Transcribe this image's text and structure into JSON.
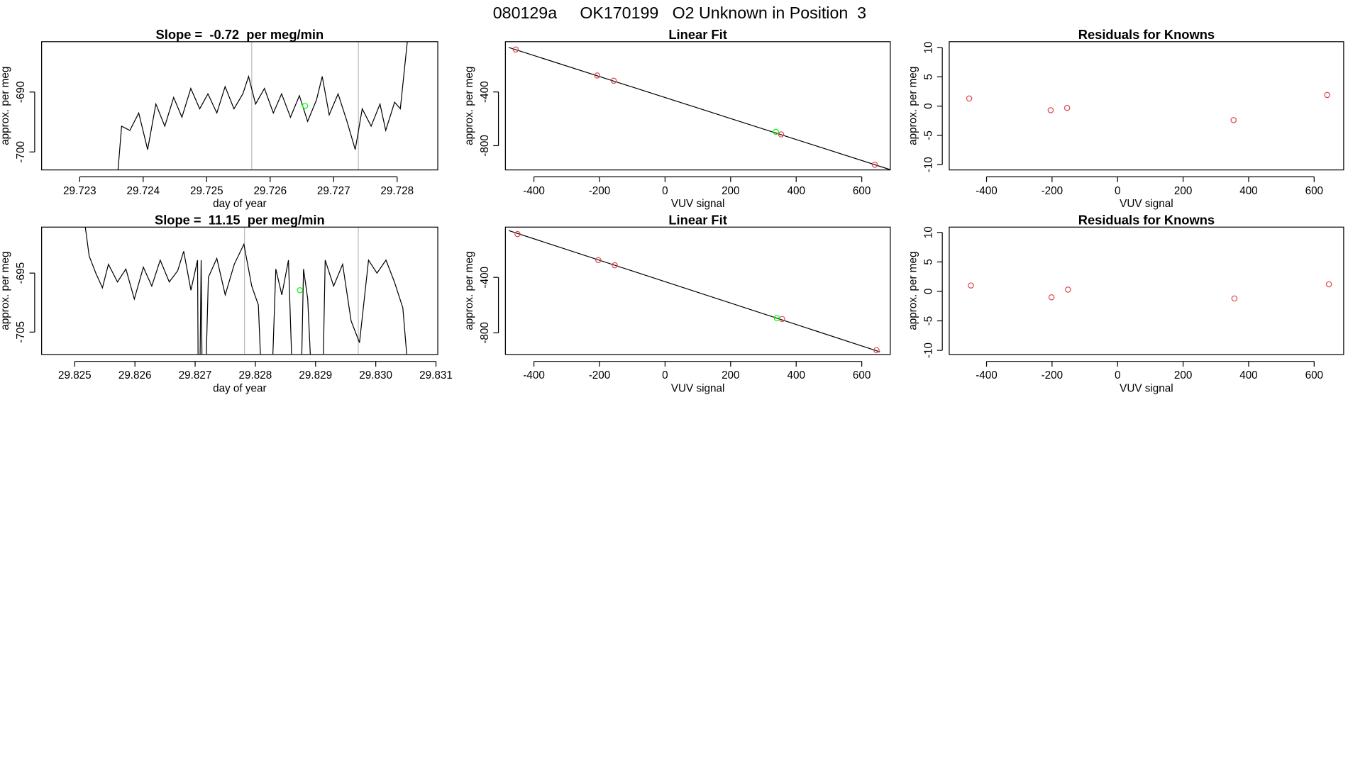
{
  "title": "080129a     OK170199   O2 Unknown in Position  3",
  "chart_data": [
    {
      "type": "line",
      "title": "Slope =  -0.72  per meg/min",
      "xlabel": "day of year",
      "ylabel": "approx. per meg",
      "color": "#000000",
      "x": [
        29.7236,
        29.72366,
        29.72379,
        29.72393,
        29.72407,
        29.7242,
        29.72434,
        29.72448,
        29.72461,
        29.72475,
        29.72489,
        29.72502,
        29.72516,
        29.72529,
        29.72543,
        29.72557,
        29.72566,
        29.72577,
        29.72591,
        29.72605,
        29.72618,
        29.72632,
        29.72646,
        29.72659,
        29.72673,
        29.72682,
        29.72693,
        29.72707,
        29.72721,
        29.72734,
        29.72745,
        29.72759,
        29.72773,
        29.72782,
        29.72796,
        29.72805,
        29.72816,
        29.72819
      ],
      "values": [
        -703.5,
        -695.7,
        -696.4,
        -693.5,
        -699.6,
        -692.0,
        -695.7,
        -690.9,
        -694.2,
        -689.4,
        -692.8,
        -690.3,
        -693.5,
        -689.1,
        -692.8,
        -690.3,
        -687.4,
        -692.0,
        -689.4,
        -693.5,
        -690.3,
        -694.2,
        -690.6,
        -694.9,
        -691.3,
        -687.4,
        -693.8,
        -690.3,
        -694.9,
        -699.6,
        -692.8,
        -695.7,
        -692.0,
        -696.4,
        -691.7,
        -692.8,
        -681.6,
        -679.0
      ],
      "reference_lines": [
        29.72571,
        29.72739
      ],
      "reference_color": "#bbbbbb",
      "unknown_point": {
        "x": 29.72655,
        "y": -692.3,
        "color": "#00ff00"
      },
      "xlim": [
        29.7224,
        29.72864
      ],
      "ylim": [
        -703.0,
        -681.6
      ],
      "xticks": [
        29.723,
        29.724,
        29.725,
        29.726,
        29.727,
        29.728
      ],
      "yticks": [
        -700,
        -690
      ]
    },
    {
      "type": "scatter",
      "title": "Linear Fit",
      "xlabel": "VUV signal",
      "ylabel": "approx. per meg",
      "series": [
        {
          "color": "#e0484e",
          "x": [
            -455.6,
            -206.9,
            -156.6,
            354,
            639.7
          ],
          "values": [
            -83.9,
            -277.4,
            -316.1,
            -716,
            -941.8
          ]
        },
        {
          "color": "#00ff00",
          "x": [
            338
          ],
          "values": [
            -696.8
          ]
        }
      ],
      "fit_line": {
        "color": "#000000",
        "x": [
          -476.7,
          687
        ],
        "values": [
          -68.7,
          -978.5
        ]
      },
      "xlim": [
        -487,
        687
      ],
      "ylim": [
        -980.6,
        -25.8
      ],
      "xticks": [
        -400,
        -200,
        0,
        200,
        400,
        600
      ],
      "yticks": [
        -800,
        -400
      ]
    },
    {
      "type": "scatter",
      "title": "Residuals for Knowns",
      "xlabel": "VUV signal",
      "ylabel": "approx. per meg",
      "series": [
        {
          "color": "#e0484e",
          "x": [
            -452.9,
            -204.2,
            -153.9,
            354,
            639.7
          ],
          "values": [
            1.3,
            -0.7,
            -0.3,
            -2.4,
            1.9
          ]
        }
      ],
      "xlim": [
        -513.8,
        690
      ],
      "ylim": [
        -10.9,
        11.0
      ],
      "xticks": [
        -400,
        -200,
        0,
        200,
        400,
        600
      ],
      "yticks": [
        -10,
        -5,
        0,
        5,
        10
      ]
    },
    {
      "type": "line",
      "title": "Slope =  11.15  per meg/min",
      "xlabel": "day of year",
      "ylabel": "approx. per meg",
      "color": "#000000",
      "x": [
        29.82516,
        29.82524,
        29.82535,
        29.82546,
        29.82556,
        29.82571,
        29.82585,
        29.82599,
        29.82614,
        29.82628,
        29.82642,
        29.82657,
        29.82671,
        29.82681,
        29.82693,
        29.82704,
        29.82706,
        29.8271,
        29.82713,
        29.82722,
        29.82736,
        29.8275,
        29.82765,
        29.82781,
        29.82794,
        29.82805,
        29.82817,
        29.82822,
        29.82834,
        29.82844,
        29.82855,
        29.82867,
        29.82873,
        29.8288,
        29.82887,
        29.82901,
        29.82909,
        29.82916,
        29.8293,
        29.82945,
        29.82959,
        29.82973,
        29.82988,
        29.83002,
        29.83017,
        29.83031,
        29.83045,
        29.83054
      ],
      "values": [
        -686.0,
        -692.1,
        -695.0,
        -697.5,
        -693.5,
        -696.5,
        -694.3,
        -699.4,
        -694.0,
        -697.2,
        -692.8,
        -696.5,
        -694.6,
        -691.3,
        -697.9,
        -692.8,
        -730,
        -692.8,
        -730,
        -695.7,
        -692.5,
        -698.7,
        -693.5,
        -690.1,
        -697.2,
        -700.4,
        -730,
        -730,
        -694.3,
        -698.7,
        -692.8,
        -730,
        -730,
        -694.3,
        -699.4,
        -730,
        -730,
        -692.8,
        -697.2,
        -693.5,
        -703.1,
        -706.8,
        -692.8,
        -695.0,
        -692.8,
        -696.5,
        -700.9,
        -712.0
      ],
      "reference_lines": [
        29.82782,
        29.82971
      ],
      "reference_color": "#bbbbbb",
      "unknown_point": {
        "x": 29.82874,
        "y": -697.9,
        "color": "#00ff00"
      },
      "xlim": [
        29.82445,
        29.83103
      ],
      "ylim": [
        -708.8,
        -687.2
      ],
      "xticks": [
        29.825,
        29.826,
        29.827,
        29.828,
        29.829,
        {
          "value": 29.83,
          "label": "29.830"
        },
        29.831
      ],
      "yticks": [
        -705,
        -695
      ]
    },
    {
      "type": "scatter",
      "title": "Linear Fit",
      "xlabel": "VUV signal",
      "ylabel": "approx. per meg",
      "series": [
        {
          "color": "#e0484e",
          "x": [
            -450,
            -203.7,
            -153.4,
            357,
            645
          ],
          "values": [
            -87.5,
            -275,
            -312.5,
            -700,
            -925
          ]
        },
        {
          "color": "#00ff00",
          "x": [
            341
          ],
          "values": [
            -693.8
          ]
        }
      ],
      "fit_line": {
        "color": "#000000",
        "x": [
          -476.7,
          655.8
        ],
        "values": [
          -62.5,
          -937.5
        ]
      },
      "xlim": [
        -487,
        687
      ],
      "ylim": [
        -956,
        -37.5
      ],
      "xticks": [
        -400,
        -200,
        0,
        200,
        400,
        600
      ],
      "yticks": [
        -800,
        -400
      ]
    },
    {
      "type": "scatter",
      "title": "Residuals for Knowns",
      "xlabel": "VUV signal",
      "ylabel": "approx. per meg",
      "series": [
        {
          "color": "#e0484e",
          "x": [
            -447.6,
            -201.6,
            -151.3,
            356.6,
            645
          ],
          "values": [
            1.0,
            -1.0,
            0.3,
            -1.2,
            1.2
          ]
        }
      ],
      "xlim": [
        -513.8,
        690
      ],
      "ylim": [
        -10.7,
        10.9
      ],
      "xticks": [
        -400,
        -200,
        0,
        200,
        400,
        600
      ],
      "yticks": [
        -10,
        -5,
        0,
        5,
        10
      ]
    }
  ]
}
